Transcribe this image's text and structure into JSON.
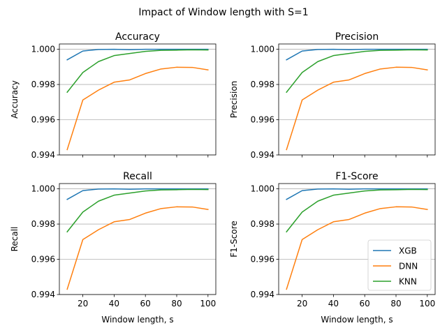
{
  "figure": {
    "suptitle": "Impact of Window length with  S=1"
  },
  "legend": {
    "placement": "lower-right",
    "panel": 3,
    "entries": [
      "XGB",
      "DNN",
      "KNN"
    ]
  },
  "colors": {
    "XGB": "#1f77b4",
    "DNN": "#ff7f0e",
    "KNN": "#2ca02c",
    "grid": "#b0b0b0"
  },
  "chart_data": [
    {
      "type": "line",
      "title": "Accuracy",
      "xlabel": "",
      "ylabel": "Accuracy",
      "x": [
        10,
        20,
        30,
        40,
        50,
        60,
        70,
        80,
        90,
        100
      ],
      "xlim": [
        5,
        105
      ],
      "ylim": [
        0.994,
        1.0003
      ],
      "xticks": [
        20,
        40,
        60,
        80,
        100
      ],
      "xtick_labels": [],
      "yticks": [
        0.994,
        0.996,
        0.998,
        1.0
      ],
      "ytick_labels": [
        "0.994",
        "0.996",
        "0.998",
        "1.000"
      ],
      "grid": "y",
      "series": [
        {
          "name": "XGB",
          "values": [
            0.9994,
            0.9999,
            0.99999,
            1.0,
            0.99998,
            1.0,
            1.0,
            1.0,
            1.0,
            1.0
          ]
        },
        {
          "name": "DNN",
          "values": [
            0.9943,
            0.99712,
            0.99768,
            0.99813,
            0.99826,
            0.99862,
            0.99888,
            0.99898,
            0.99897,
            0.99883
          ]
        },
        {
          "name": "KNN",
          "values": [
            0.99756,
            0.99868,
            0.9993,
            0.99964,
            0.99976,
            0.99988,
            0.99994,
            0.99995,
            0.99997,
            0.99996
          ]
        }
      ]
    },
    {
      "type": "line",
      "title": "Precision",
      "xlabel": "",
      "ylabel": "Precision",
      "x": [
        10,
        20,
        30,
        40,
        50,
        60,
        70,
        80,
        90,
        100
      ],
      "xlim": [
        5,
        105
      ],
      "ylim": [
        0.994,
        1.0003
      ],
      "xticks": [
        20,
        40,
        60,
        80,
        100
      ],
      "xtick_labels": [],
      "yticks": [
        0.994,
        0.996,
        0.998,
        1.0
      ],
      "ytick_labels": [
        "0.994",
        "0.996",
        "0.998",
        "1.000"
      ],
      "grid": "y",
      "series": [
        {
          "name": "XGB",
          "values": [
            0.9994,
            0.9999,
            0.99999,
            1.0,
            0.99998,
            1.0,
            1.0,
            1.0,
            1.0,
            1.0
          ]
        },
        {
          "name": "DNN",
          "values": [
            0.9943,
            0.99712,
            0.99768,
            0.99813,
            0.99826,
            0.99862,
            0.99888,
            0.99898,
            0.99897,
            0.99883
          ]
        },
        {
          "name": "KNN",
          "values": [
            0.99756,
            0.99868,
            0.9993,
            0.99964,
            0.99976,
            0.99988,
            0.99994,
            0.99995,
            0.99997,
            0.99996
          ]
        }
      ]
    },
    {
      "type": "line",
      "title": "Recall",
      "xlabel": "Window length, s",
      "ylabel": "Recall",
      "x": [
        10,
        20,
        30,
        40,
        50,
        60,
        70,
        80,
        90,
        100
      ],
      "xlim": [
        5,
        105
      ],
      "ylim": [
        0.994,
        1.0003
      ],
      "xticks": [
        20,
        40,
        60,
        80,
        100
      ],
      "xtick_labels": [
        "20",
        "40",
        "60",
        "80",
        "100"
      ],
      "yticks": [
        0.994,
        0.996,
        0.998,
        1.0
      ],
      "ytick_labels": [
        "0.994",
        "0.996",
        "0.998",
        "1.000"
      ],
      "grid": "y",
      "series": [
        {
          "name": "XGB",
          "values": [
            0.9994,
            0.9999,
            0.99999,
            1.0,
            0.99998,
            1.0,
            1.0,
            1.0,
            1.0,
            1.0
          ]
        },
        {
          "name": "DNN",
          "values": [
            0.9943,
            0.99712,
            0.99768,
            0.99813,
            0.99826,
            0.99862,
            0.99888,
            0.99898,
            0.99897,
            0.99883
          ]
        },
        {
          "name": "KNN",
          "values": [
            0.99756,
            0.99868,
            0.9993,
            0.99964,
            0.99976,
            0.99988,
            0.99994,
            0.99995,
            0.99997,
            0.99996
          ]
        }
      ]
    },
    {
      "type": "line",
      "title": "F1-Score",
      "xlabel": "Window length, s",
      "ylabel": "F1-Score",
      "x": [
        10,
        20,
        30,
        40,
        50,
        60,
        70,
        80,
        90,
        100
      ],
      "xlim": [
        5,
        105
      ],
      "ylim": [
        0.994,
        1.0003
      ],
      "xticks": [
        20,
        40,
        60,
        80,
        100
      ],
      "xtick_labels": [
        "20",
        "40",
        "60",
        "80",
        "100"
      ],
      "yticks": [
        0.994,
        0.996,
        0.998,
        1.0
      ],
      "ytick_labels": [
        "0.994",
        "0.996",
        "0.998",
        "1.000"
      ],
      "grid": "y",
      "series": [
        {
          "name": "XGB",
          "values": [
            0.9994,
            0.9999,
            0.99999,
            1.0,
            0.99998,
            1.0,
            1.0,
            1.0,
            1.0,
            1.0
          ]
        },
        {
          "name": "DNN",
          "values": [
            0.9943,
            0.99712,
            0.99768,
            0.99813,
            0.99826,
            0.99862,
            0.99888,
            0.99898,
            0.99897,
            0.99883
          ]
        },
        {
          "name": "KNN",
          "values": [
            0.99756,
            0.99868,
            0.9993,
            0.99964,
            0.99976,
            0.99988,
            0.99994,
            0.99995,
            0.99997,
            0.99996
          ]
        }
      ]
    }
  ]
}
